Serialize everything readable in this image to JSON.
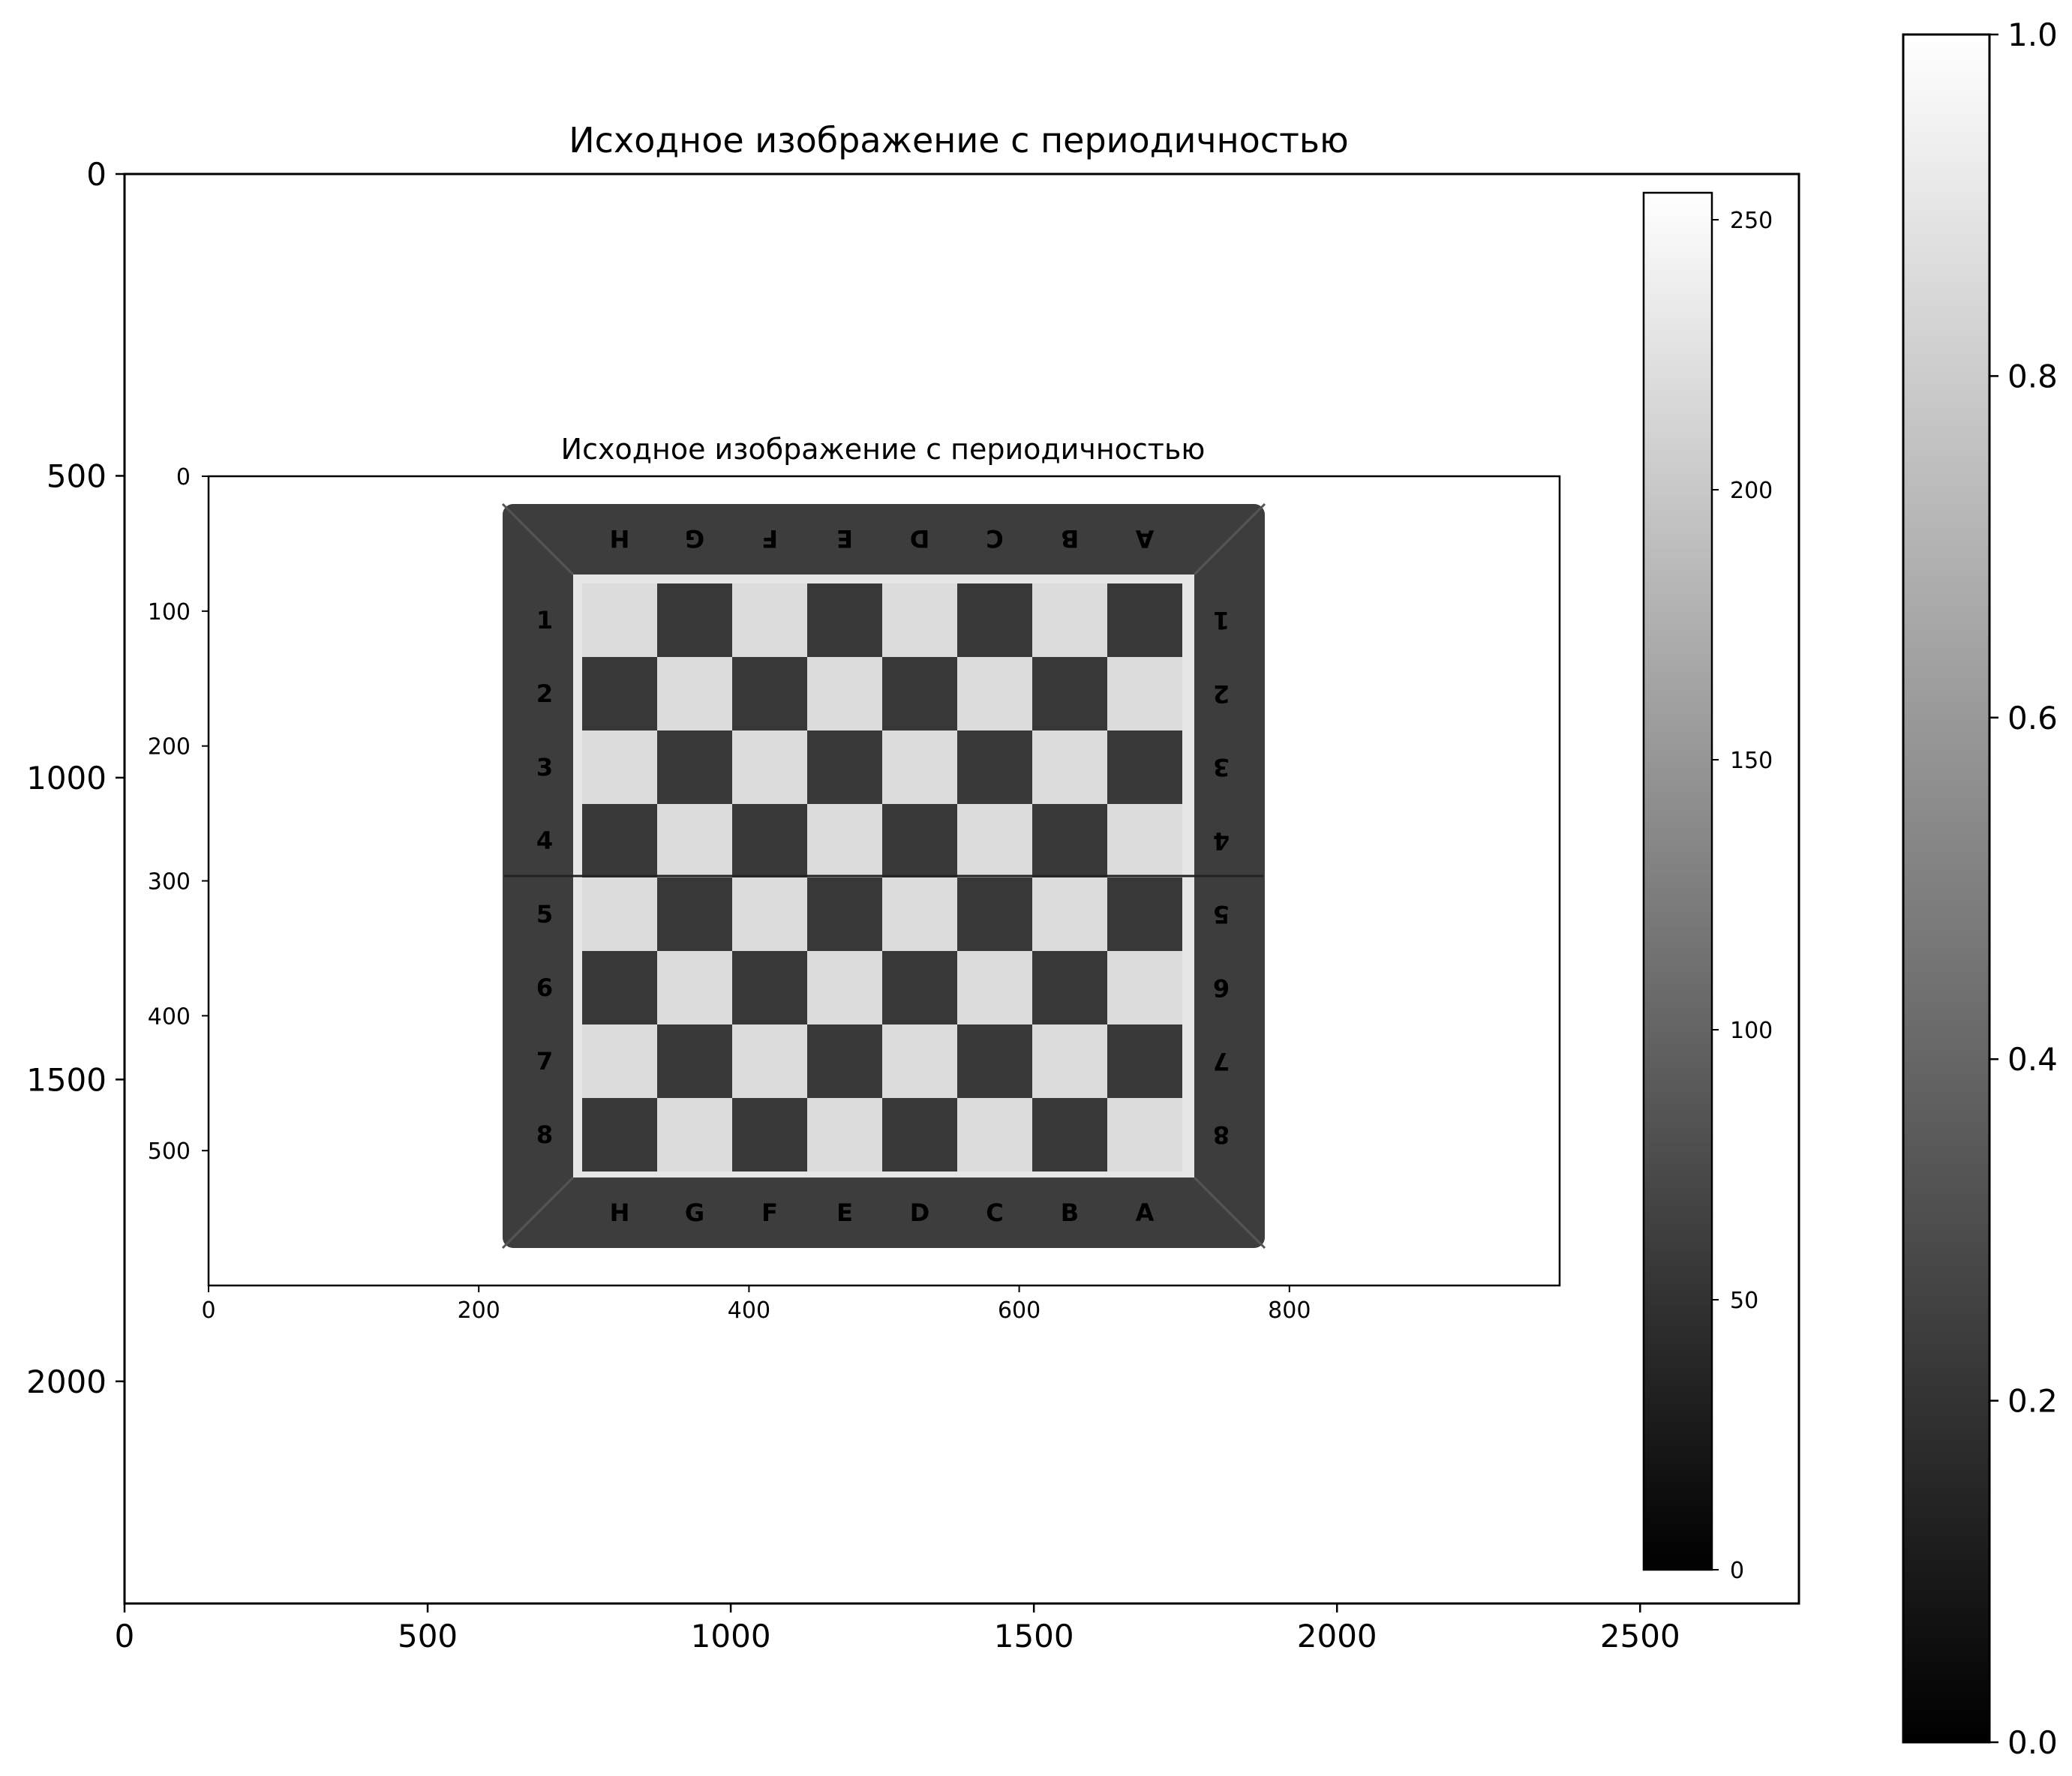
{
  "chart_data": [
    {
      "type": "heatmap",
      "description_role": "outer image axes (rendered figure)",
      "title": "Исходное изображение с периодичностью",
      "xticks": [
        0,
        500,
        1000,
        1500,
        2000,
        2500
      ],
      "yticks": [
        0,
        500,
        1000,
        1500,
        2000
      ],
      "xlim": [
        0,
        2762
      ],
      "ylim": [
        2368,
        0
      ],
      "colorbar": {
        "ticks": [
          "0.0",
          "0.2",
          "0.4",
          "0.6",
          "0.8",
          "1.0"
        ],
        "range": [
          0,
          1
        ],
        "cmap": "gray"
      }
    },
    {
      "type": "heatmap",
      "description_role": "inner image axes (grayscale chessboard photo)",
      "title": "Исходное изображение с периодичностью",
      "xticks": [
        0,
        200,
        400,
        600,
        800
      ],
      "yticks": [
        0,
        100,
        200,
        300,
        400,
        500
      ],
      "xlim": [
        0,
        1000
      ],
      "ylim": [
        600,
        0
      ],
      "colorbar": {
        "ticks": [
          0,
          50,
          100,
          150,
          200,
          250
        ],
        "range": [
          0,
          255
        ],
        "cmap": "gray"
      },
      "board": {
        "top_letters": [
          "H",
          "G",
          "F",
          "E",
          "D",
          "C",
          "B",
          "A"
        ],
        "bottom_letters": [
          "H",
          "G",
          "F",
          "E",
          "D",
          "C",
          "B",
          "A"
        ],
        "left_numbers": [
          "1",
          "2",
          "3",
          "4",
          "5",
          "6",
          "7",
          "8"
        ],
        "right_numbers": [
          "1",
          "2",
          "3",
          "4",
          "5",
          "6",
          "7",
          "8"
        ]
      }
    }
  ],
  "colors": {
    "frame": "#3d3d3d",
    "dark_square": "#383838",
    "light_square": "#dcdcdc",
    "inlay": "#e6e6e6",
    "label": "#cfcfcf"
  }
}
